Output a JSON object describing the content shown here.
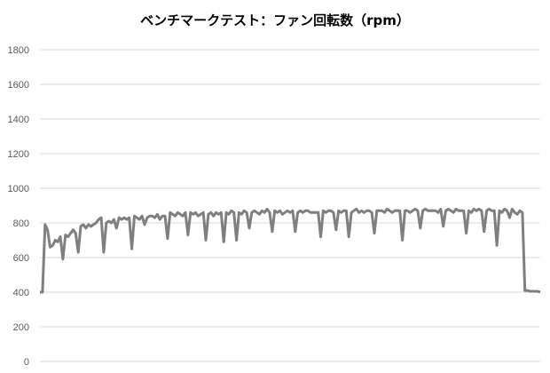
{
  "chart_data": {
    "type": "line",
    "title": "ベンチマークテスト：ファン回転数（rpm）",
    "xlabel": "",
    "ylabel": "",
    "ylim": [
      0,
      1800
    ],
    "yticks": [
      0,
      200,
      400,
      600,
      800,
      1000,
      1200,
      1400,
      1600,
      1800
    ],
    "grid": true,
    "legend": "none",
    "line_color": "#7f7f7f",
    "grid_color": "#d9d9d9",
    "series": [
      {
        "values": [
          400,
          400,
          790,
          760,
          660,
          670,
          700,
          690,
          720,
          590,
          730,
          720,
          740,
          760,
          740,
          630,
          780,
          790,
          770,
          790,
          780,
          790,
          800,
          820,
          830,
          630,
          800,
          810,
          800,
          820,
          770,
          830,
          820,
          830,
          820,
          830,
          650,
          840,
          830,
          820,
          840,
          790,
          830,
          840,
          840,
          830,
          850,
          820,
          840,
          840,
          710,
          860,
          850,
          840,
          860,
          850,
          840,
          860,
          730,
          860,
          850,
          860,
          840,
          850,
          860,
          700,
          850,
          860,
          840,
          860,
          850,
          860,
          690,
          860,
          850,
          870,
          860,
          700,
          860,
          850,
          870,
          860,
          770,
          860,
          870,
          860,
          850,
          870,
          860,
          880,
          860,
          750,
          870,
          860,
          870,
          850,
          860,
          870,
          860,
          870,
          750,
          860,
          870,
          860,
          870,
          870,
          860,
          860,
          860,
          860,
          720,
          870,
          860,
          870,
          870,
          860,
          760,
          870,
          860,
          870,
          870,
          720,
          860,
          870,
          880,
          860,
          870,
          860,
          870,
          870,
          860,
          740,
          870,
          870,
          870,
          860,
          880,
          870,
          860,
          870,
          870,
          870,
          700,
          870,
          870,
          860,
          870,
          880,
          870,
          770,
          870,
          880,
          870,
          870,
          870,
          870,
          860,
          880,
          780,
          870,
          880,
          870,
          860,
          880,
          870,
          870,
          870,
          740,
          870,
          860,
          880,
          870,
          880,
          870,
          750,
          870,
          880,
          870,
          870,
          670,
          870,
          860,
          880,
          870,
          830,
          880,
          860,
          850,
          870,
          860,
          410,
          410,
          405,
          405,
          405,
          405,
          400
        ]
      }
    ]
  }
}
